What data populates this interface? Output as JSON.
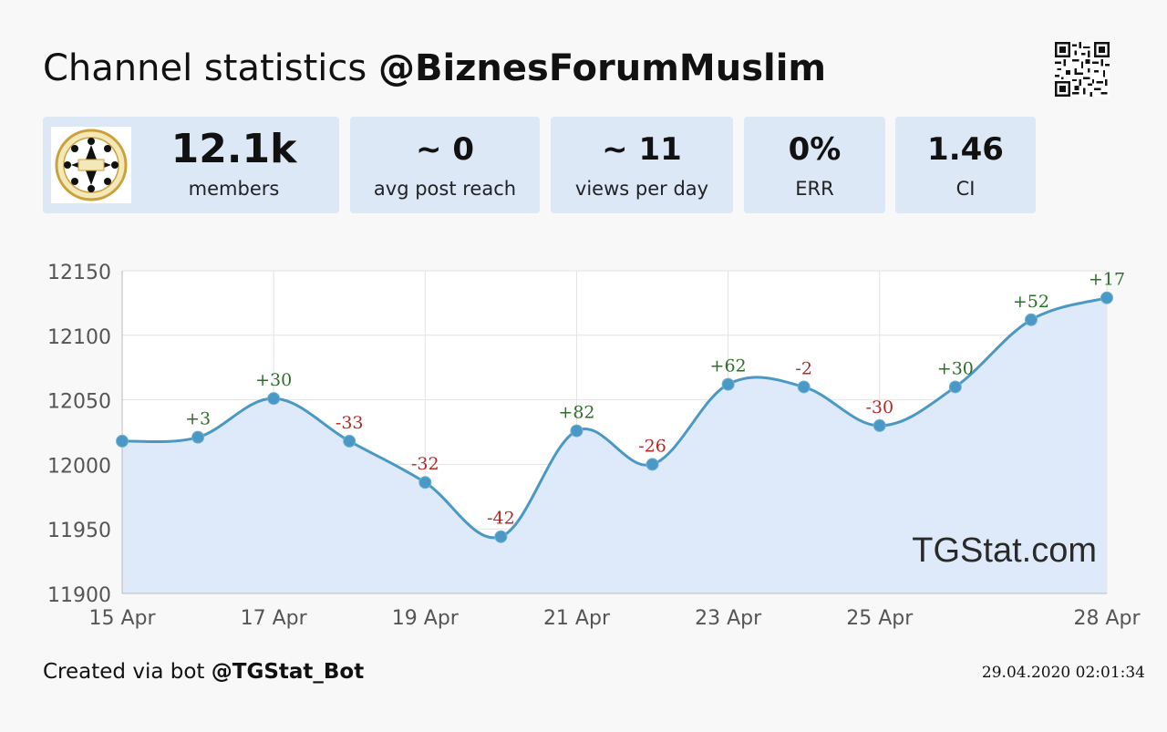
{
  "header": {
    "title_prefix": "Channel statistics",
    "channel_handle": "@BiznesForumMuslim"
  },
  "stats": [
    {
      "value": "12.1k",
      "label": "members"
    },
    {
      "value": "~ 0",
      "label": "avg post reach"
    },
    {
      "value": "~ 11",
      "label": "views per day"
    },
    {
      "value": "0%",
      "label": "ERR"
    },
    {
      "value": "1.46",
      "label": "CI"
    }
  ],
  "watermark": "TGStat.com",
  "footer": {
    "created_via": "Created via bot",
    "bot_handle": "@TGStat_Bot",
    "timestamp": "29.04.2020 02:01:34"
  },
  "colors": {
    "card_bg": "#dce8f6",
    "line": "#4a98c4",
    "area": "#deeafa",
    "positive": "#2d6e2d",
    "negative": "#b42828"
  },
  "chart_data": {
    "type": "area",
    "x": [
      "15 Apr",
      "16 Apr",
      "17 Apr",
      "18 Apr",
      "19 Apr",
      "20 Apr",
      "21 Apr",
      "22 Apr",
      "23 Apr",
      "24 Apr",
      "25 Apr",
      "26 Apr",
      "27 Apr",
      "28 Apr"
    ],
    "values": [
      12018,
      12021,
      12051,
      12018,
      11986,
      11944,
      12026,
      12000,
      12062,
      12060,
      12030,
      12060,
      12112,
      12129
    ],
    "point_labels": [
      "",
      "+3",
      "+30",
      "-33",
      "-32",
      "-42",
      "+82",
      "-26",
      "+62",
      "-2",
      "-30",
      "+30",
      "+52",
      "+17"
    ],
    "x_tick_labels": [
      "15 Apr",
      "17 Apr",
      "19 Apr",
      "21 Apr",
      "23 Apr",
      "25 Apr",
      "28 Apr"
    ],
    "x_tick_indices": [
      0,
      2,
      4,
      6,
      8,
      10,
      13
    ],
    "y_ticks": [
      11900,
      11950,
      12000,
      12050,
      12100,
      12150
    ],
    "ylim": [
      11900,
      12150
    ],
    "grid": true,
    "title": "",
    "xlabel": "",
    "ylabel": ""
  }
}
